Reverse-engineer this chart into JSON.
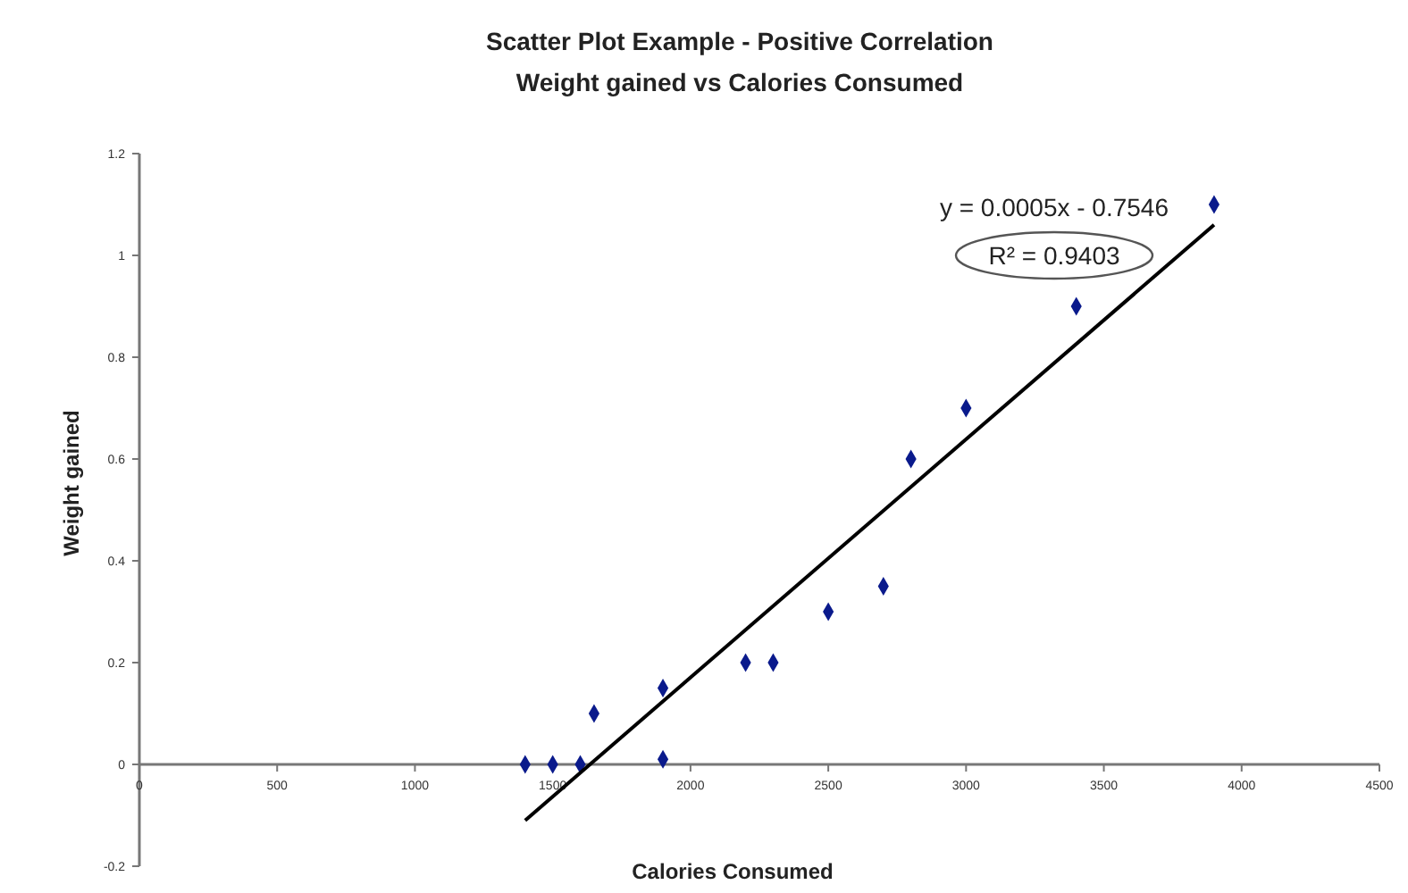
{
  "chart_data": {
    "type": "scatter",
    "title": "Scatter Plot Example - Positive Correlation",
    "subtitle": "Weight gained vs Calories Consumed",
    "xlabel": "Calories Consumed",
    "ylabel": "Weight gained",
    "x": [
      1400,
      1500,
      1600,
      1650,
      1900,
      1900,
      2200,
      2300,
      2500,
      2700,
      2800,
      3000,
      3400,
      3900
    ],
    "series": [
      {
        "color": "#0a1a8c",
        "marker": "diamond",
        "values": [
          0,
          0,
          0,
          0.1,
          0.15,
          0.01,
          0.2,
          0.2,
          0.3,
          0.35,
          0.6,
          0.7,
          0.9,
          1.1
        ]
      },
      {
        "type": "line",
        "color": "#000000",
        "marker": "none",
        "line_style": "solid",
        "x": [
          1400,
          3900
        ],
        "values": [
          -0.11,
          1.06
        ]
      }
    ],
    "annotations": [
      "y = 0.0005x - 0.7546",
      "R² = 0.9403"
    ],
    "xlim": [
      0,
      4500
    ],
    "xticks": [
      0,
      500,
      1000,
      1500,
      2000,
      2500,
      3000,
      3500,
      4000,
      4500
    ],
    "ylim": [
      -0.2,
      1.2
    ],
    "yticks": [
      -0.2,
      0,
      0.2,
      0.4,
      0.6,
      0.8,
      1,
      1.2
    ],
    "grid": false
  }
}
